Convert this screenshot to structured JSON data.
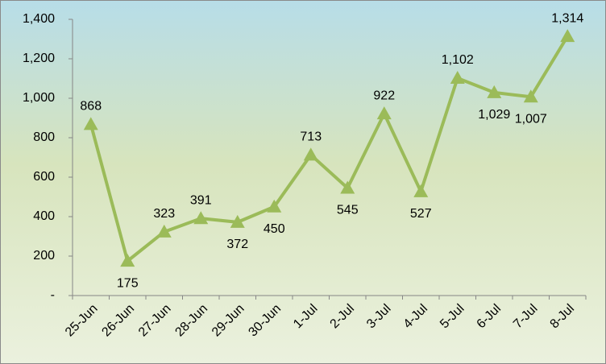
{
  "chart_data": {
    "type": "line",
    "categories": [
      "25-Jun",
      "26-Jun",
      "27-Jun",
      "28-Jun",
      "29-Jun",
      "30-Jun",
      "1-Jul",
      "2-Jul",
      "3-Jul",
      "4-Jul",
      "5-Jul",
      "6-Jul",
      "7-Jul",
      "8-Jul"
    ],
    "series": [
      {
        "color": "#9bbb59",
        "values": [
          868,
          175,
          323,
          391,
          372,
          450,
          713,
          545,
          922,
          527,
          1102,
          1029,
          1007,
          1314
        ],
        "value_labels": [
          "868",
          "175",
          "323",
          "391",
          "372",
          "450",
          "713",
          "545",
          "922",
          "527",
          "1,102",
          "1,029",
          "1,007",
          "1,314"
        ]
      }
    ],
    "ylim": [
      0,
      1400
    ],
    "yticks": [
      {
        "value": 0,
        "label": "-"
      },
      200,
      400,
      600,
      800,
      {
        "value": 1000,
        "label": "1,000"
      },
      {
        "value": 1200,
        "label": "1,200"
      },
      {
        "value": 1400,
        "label": "1,400"
      }
    ],
    "grid": false
  }
}
